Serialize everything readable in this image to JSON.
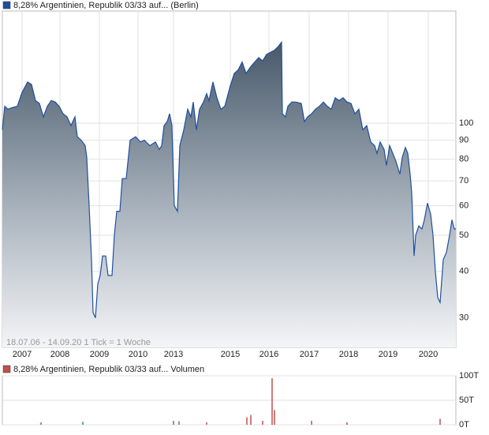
{
  "chart_data": [
    {
      "type": "area",
      "yscale": "log",
      "grid": true,
      "note": "18.07.06 - 14.09.20   1 Tick = 1 Woche",
      "xlim": [
        0,
        575
      ],
      "ylim": [
        25,
        200
      ],
      "xticks": [
        {
          "value": 25,
          "label": "2007"
        },
        {
          "value": 73,
          "label": "2008"
        },
        {
          "value": 123,
          "label": "2009"
        },
        {
          "value": 172,
          "label": "2010"
        },
        {
          "value": 217,
          "label": "2013"
        },
        {
          "value": 289,
          "label": "2015"
        },
        {
          "value": 338,
          "label": "2016"
        },
        {
          "value": 389,
          "label": "2017"
        },
        {
          "value": 439,
          "label": "2018"
        },
        {
          "value": 489,
          "label": "2019"
        },
        {
          "value": 540,
          "label": "2020"
        }
      ],
      "yticks": [
        30,
        40,
        50,
        60,
        70,
        80,
        90,
        100
      ],
      "series": [
        {
          "name": "8,28% Argentinien, Republik 03/33 auf... (Berlin)",
          "color": "#1f4fa0",
          "x": [
            0,
            3,
            7,
            12,
            19,
            25,
            32,
            37,
            42,
            47,
            52,
            57,
            62,
            67,
            72,
            77,
            82,
            87,
            92,
            95,
            100,
            105,
            107,
            110,
            113,
            115,
            118,
            121,
            124,
            127,
            131,
            134,
            139,
            142,
            145,
            149,
            152,
            157,
            162,
            169,
            175,
            180,
            187,
            194,
            199,
            202,
            205,
            209,
            212,
            215,
            218,
            222,
            225,
            230,
            235,
            239,
            242,
            246,
            250,
            255,
            259,
            262,
            267,
            272,
            277,
            282,
            289,
            294,
            299,
            304,
            309,
            315,
            320,
            325,
            330,
            335,
            340,
            345,
            349,
            354,
            355,
            359,
            362,
            367,
            372,
            379,
            383,
            387,
            392,
            397,
            402,
            407,
            412,
            417,
            422,
            427,
            432,
            437,
            442,
            447,
            452,
            457,
            462,
            467,
            472,
            475,
            479,
            484,
            487,
            491,
            495,
            499,
            504,
            507,
            511,
            514,
            517,
            519,
            522,
            524,
            528,
            532,
            535,
            539,
            543,
            546,
            549,
            552,
            555,
            559,
            563,
            567,
            570,
            573,
            575
          ],
          "values": [
            96,
            111,
            109,
            110,
            111,
            121,
            129,
            127,
            115,
            113,
            104,
            111,
            115,
            114,
            111,
            106,
            104,
            98.5,
            104,
            92,
            90,
            87,
            81,
            60,
            43,
            31,
            30,
            37,
            39,
            44,
            44,
            39,
            39,
            50,
            58,
            58,
            71,
            71,
            90,
            92,
            89,
            90,
            87,
            89,
            85,
            87,
            98.5,
            101,
            106,
            98.5,
            60,
            58,
            87,
            96,
            109,
            104,
            114,
            96,
            109,
            114,
            120,
            115,
            129,
            117,
            109,
            111,
            126,
            136,
            139,
            146,
            136,
            142,
            146,
            150,
            147,
            153,
            155,
            157,
            160,
            165,
            106,
            104,
            111,
            114,
            114,
            113,
            101,
            104,
            106,
            109,
            111,
            114,
            111,
            109,
            117,
            115,
            117,
            114,
            113,
            106,
            109,
            96,
            98.5,
            89,
            87,
            83,
            89,
            85,
            77,
            87,
            83,
            79,
            73,
            81,
            86,
            83,
            73,
            65,
            44,
            50,
            53,
            52,
            55,
            61,
            57,
            50,
            40,
            34,
            33,
            43,
            45,
            50,
            55,
            52,
            52
          ]
        }
      ]
    },
    {
      "type": "volume",
      "grid": true,
      "xlim": [
        0,
        575
      ],
      "ylim": [
        0,
        100
      ],
      "yticks": [
        {
          "value": 0,
          "label": "0T"
        },
        {
          "value": 50,
          "label": "50T"
        },
        {
          "value": 100,
          "label": "100T"
        }
      ],
      "series": [
        {
          "name": "8,28% Argentinien, Republik 03/33 auf... Volumen",
          "color": "#c0504d",
          "x": [
            49,
            102,
            217,
            224,
            259,
            310,
            315,
            330,
            342,
            345,
            392,
            437,
            555
          ],
          "values": [
            5,
            6,
            8,
            7,
            5,
            15,
            20,
            8,
            95,
            30,
            8,
            5,
            12
          ],
          "colors": [
            "#3a9a3a",
            "#3a9a3a",
            "#3a9a3a",
            "#3a9a3a",
            "#c0504d",
            "#c0504d",
            "#c0504d",
            "#c0504d",
            "#c0504d",
            "#c0504d",
            "#c0504d",
            "#c0504d",
            "#c0504d"
          ]
        }
      ]
    }
  ]
}
